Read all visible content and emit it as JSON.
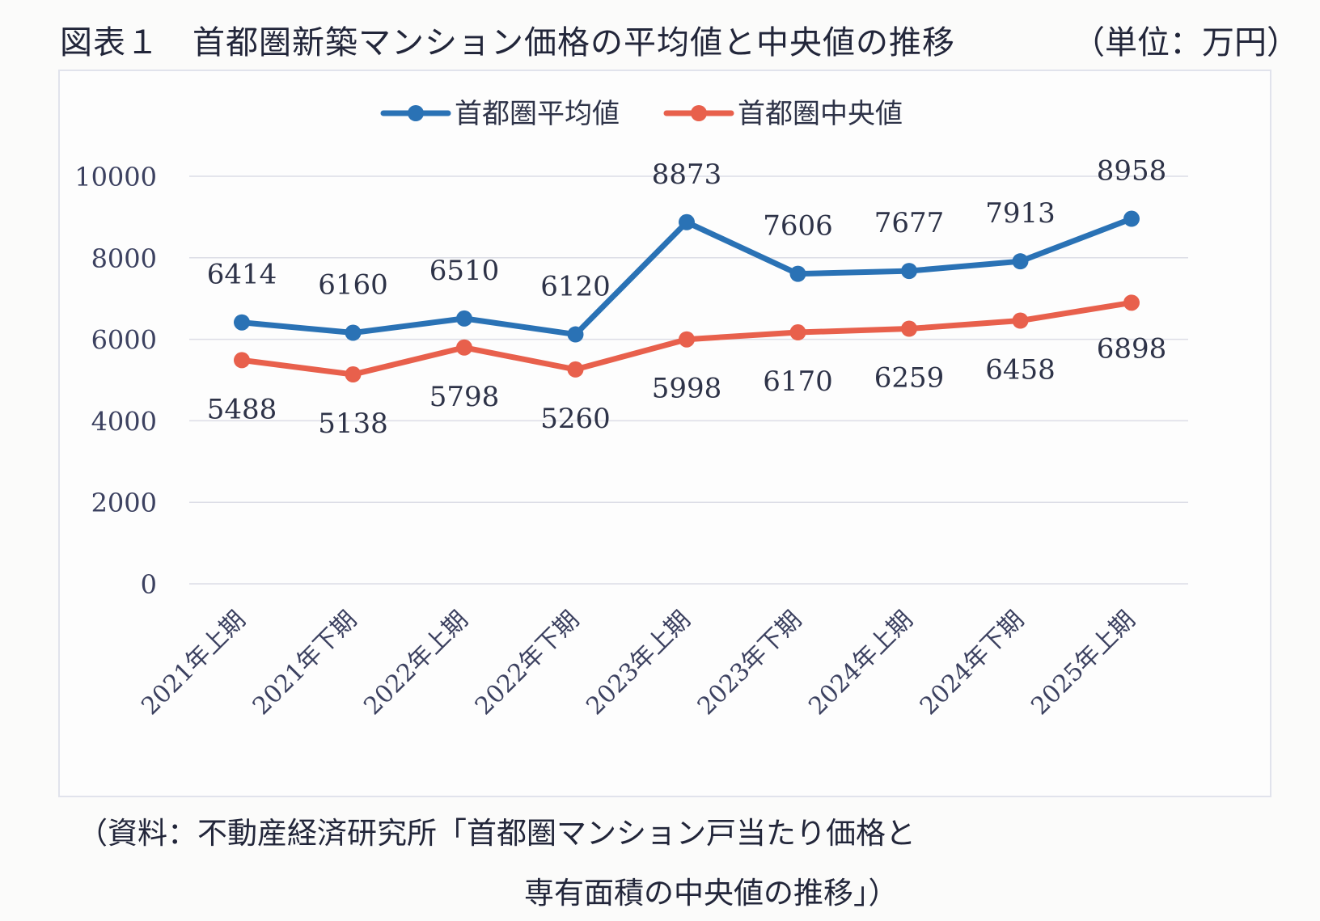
{
  "title": "図表１　首都圏新築マンション価格の平均値と中央値の推移",
  "unit": "（単位：万円）",
  "source_line1": "（資料：不動産経済研究所「首都圏マンション戸当たり価格と",
  "source_line2": "専有面積の中央値の推移」）",
  "chart_data": {
    "type": "line",
    "categories": [
      "2021年上期",
      "2021年下期",
      "2022年上期",
      "2022年下期",
      "2023年上期",
      "2023年下期",
      "2024年上期",
      "2024年下期",
      "2025年上期"
    ],
    "series": [
      {
        "name": "首都圏平均値",
        "color": "#2a72b5",
        "values": [
          6414,
          6160,
          6510,
          6120,
          8873,
          7606,
          7677,
          7913,
          8958
        ]
      },
      {
        "name": "首都圏中央値",
        "color": "#e8604c",
        "values": [
          5488,
          5138,
          5798,
          5260,
          5998,
          6170,
          6259,
          6458,
          6898
        ]
      }
    ],
    "yticks": [
      "0",
      "2000",
      "4000",
      "6000",
      "8000",
      "10000"
    ],
    "ylim": [
      0,
      10000
    ],
    "grid": true,
    "legend": "top-center"
  }
}
